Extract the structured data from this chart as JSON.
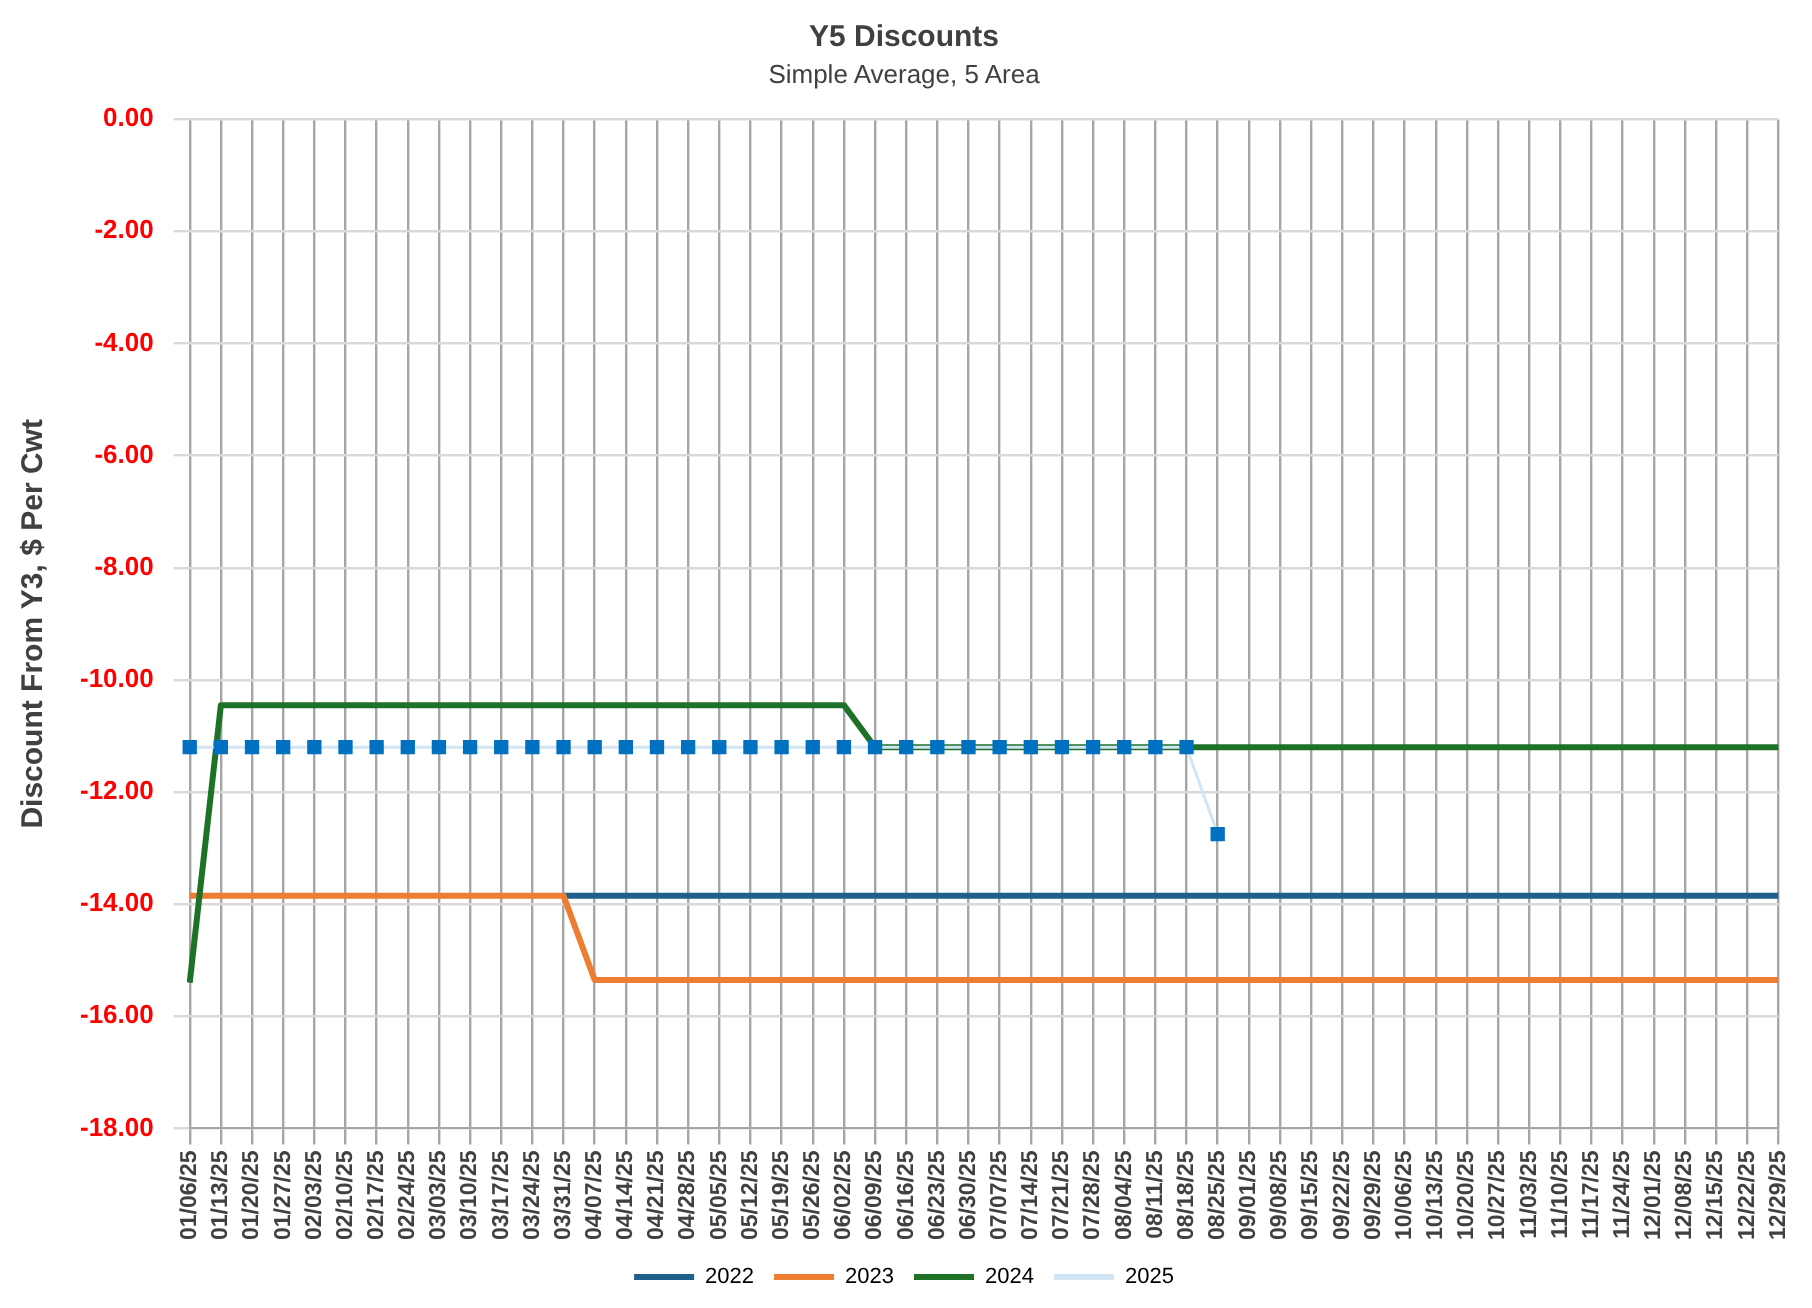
{
  "chart_data": {
    "type": "line",
    "title": "Y5 Discounts",
    "subtitle": "Simple Average, 5 Area",
    "ylabel": "Discount From Y3, $ Per Cwt",
    "categories": [
      "01/06/25",
      "01/13/25",
      "01/20/25",
      "01/27/25",
      "02/03/25",
      "02/10/25",
      "02/17/25",
      "02/24/25",
      "03/03/25",
      "03/10/25",
      "03/17/25",
      "03/24/25",
      "03/31/25",
      "04/07/25",
      "04/14/25",
      "04/21/25",
      "04/28/25",
      "05/05/25",
      "05/12/25",
      "05/19/25",
      "05/26/25",
      "06/02/25",
      "06/09/25",
      "06/16/25",
      "06/23/25",
      "06/30/25",
      "07/07/25",
      "07/14/25",
      "07/21/25",
      "07/28/25",
      "08/04/25",
      "08/11/25",
      "08/18/25",
      "08/25/25",
      "09/01/25",
      "09/08/25",
      "09/15/25",
      "09/22/25",
      "09/29/25",
      "10/06/25",
      "10/13/25",
      "10/20/25",
      "10/27/25",
      "11/03/25",
      "11/10/25",
      "11/17/25",
      "11/24/25",
      "12/01/25",
      "12/08/25",
      "12/15/25",
      "12/22/25",
      "12/29/25"
    ],
    "series": [
      {
        "name": "2022",
        "color": "#1f5f8b",
        "marker": "none",
        "values": [
          null,
          null,
          null,
          null,
          null,
          null,
          null,
          null,
          null,
          null,
          null,
          null,
          -13.85,
          -13.85,
          -13.85,
          -13.85,
          -13.85,
          -13.85,
          -13.85,
          -13.85,
          -13.85,
          -13.85,
          -13.85,
          -13.85,
          -13.85,
          -13.85,
          -13.85,
          -13.85,
          -13.85,
          -13.85,
          -13.85,
          -13.85,
          -13.85,
          -13.85,
          -13.85,
          -13.85,
          -13.85,
          -13.85,
          -13.85,
          -13.85,
          -13.85,
          -13.85,
          -13.85,
          -13.85,
          -13.85,
          -13.85,
          -13.85,
          -13.85,
          -13.85,
          -13.85,
          -13.85,
          -13.85
        ]
      },
      {
        "name": "2023",
        "color": "#ed7d31",
        "marker": "none",
        "values": [
          -13.85,
          -13.85,
          -13.85,
          -13.85,
          -13.85,
          -13.85,
          -13.85,
          -13.85,
          -13.85,
          -13.85,
          -13.85,
          -13.85,
          -13.85,
          -15.35,
          -15.35,
          -15.35,
          -15.35,
          -15.35,
          -15.35,
          -15.35,
          -15.35,
          -15.35,
          -15.35,
          -15.35,
          -15.35,
          -15.35,
          -15.35,
          -15.35,
          -15.35,
          -15.35,
          -15.35,
          -15.35,
          -15.35,
          -15.35,
          -15.35,
          -15.35,
          -15.35,
          -15.35,
          -15.35,
          -15.35,
          -15.35,
          -15.35,
          -15.35,
          -15.35,
          -15.35,
          -15.35,
          -15.35,
          -15.35,
          -15.35,
          -15.35,
          -15.35,
          -15.35
        ]
      },
      {
        "name": "2024",
        "color": "#1e7228",
        "marker": "none",
        "values": [
          -15.4,
          -10.45,
          -10.45,
          -10.45,
          -10.45,
          -10.45,
          -10.45,
          -10.45,
          -10.45,
          -10.45,
          -10.45,
          -10.45,
          -10.45,
          -10.45,
          -10.45,
          -10.45,
          -10.45,
          -10.45,
          -10.45,
          -10.45,
          -10.45,
          -10.45,
          -11.2,
          -11.2,
          -11.2,
          -11.2,
          -11.2,
          -11.2,
          -11.2,
          -11.2,
          -11.2,
          -11.2,
          -11.2,
          -11.2,
          -11.2,
          -11.2,
          -11.2,
          -11.2,
          -11.2,
          -11.2,
          -11.2,
          -11.2,
          -11.2,
          -11.2,
          -11.2,
          -11.2,
          -11.2,
          -11.2,
          -11.2,
          -11.2,
          -11.2,
          -11.2
        ]
      },
      {
        "name": "2025",
        "color": "#0070c0",
        "marker": "square",
        "values": [
          -11.2,
          -11.2,
          -11.2,
          -11.2,
          -11.2,
          -11.2,
          -11.2,
          -11.2,
          -11.2,
          -11.2,
          -11.2,
          -11.2,
          -11.2,
          -11.2,
          -11.2,
          -11.2,
          -11.2,
          -11.2,
          -11.2,
          -11.2,
          -11.2,
          -11.2,
          -11.2,
          -11.2,
          -11.2,
          -11.2,
          -11.2,
          -11.2,
          -11.2,
          -11.2,
          -11.2,
          -11.2,
          -11.2,
          -12.75,
          null,
          null,
          null,
          null,
          null,
          null,
          null,
          null,
          null,
          null,
          null,
          null,
          null,
          null,
          null,
          null,
          null,
          null
        ]
      }
    ],
    "ylim": [
      -18,
      0
    ],
    "yticks": [
      {
        "value": 0,
        "label": "0.00"
      },
      {
        "value": -2,
        "label": "-2.00"
      },
      {
        "value": -4,
        "label": "-4.00"
      },
      {
        "value": -6,
        "label": "-6.00"
      },
      {
        "value": -8,
        "label": "-8.00"
      },
      {
        "value": -10,
        "label": "-10.00"
      },
      {
        "value": -12,
        "label": "-12.00"
      },
      {
        "value": -14,
        "label": "-14.00"
      },
      {
        "value": -16,
        "label": "-16.00"
      },
      {
        "value": -18,
        "label": "-18.00"
      }
    ],
    "grid": true,
    "legend": "bottom"
  }
}
